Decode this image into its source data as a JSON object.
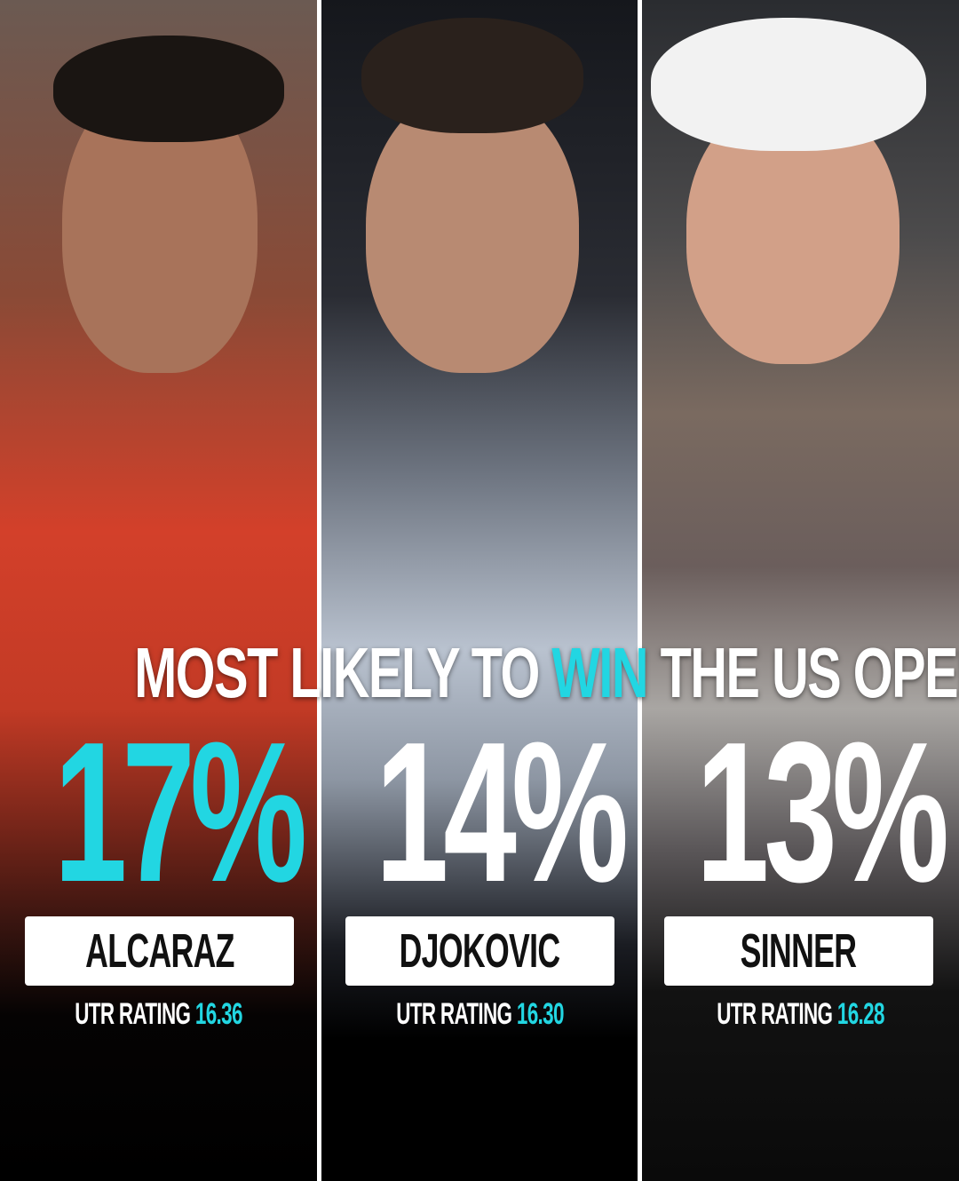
{
  "title": {
    "before": "MOST LIKELY TO ",
    "highlight": "WIN",
    "after": " THE US OPEN"
  },
  "accent_color": "#22d6e2",
  "players": [
    {
      "name": "ALCARAZ",
      "percent": "17%",
      "utr_label": "UTR RATING",
      "utr_value": "16.36",
      "highlighted": true
    },
    {
      "name": "DJOKOVIC",
      "percent": "14%",
      "utr_label": "UTR RATING",
      "utr_value": "16.30",
      "highlighted": false
    },
    {
      "name": "SINNER",
      "percent": "13%",
      "utr_label": "UTR RATING",
      "utr_value": "16.28",
      "highlighted": false
    }
  ]
}
